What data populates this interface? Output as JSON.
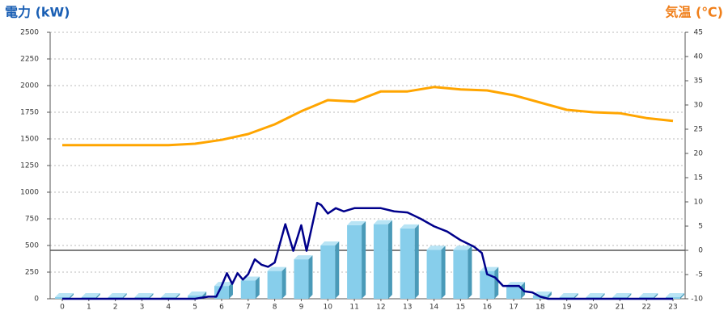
{
  "chart_data": {
    "type": "bar-line",
    "title": "電力 (kW)",
    "y2_title": "気温 (℃)",
    "categories": [
      "0",
      "1",
      "2",
      "3",
      "4",
      "5",
      "6",
      "7",
      "8",
      "9",
      "10",
      "11",
      "12",
      "13",
      "14",
      "15",
      "16",
      "17",
      "18",
      "19",
      "20",
      "21",
      "22",
      "23"
    ],
    "ylim": [
      0,
      2500
    ],
    "yticks": [
      0,
      250,
      500,
      750,
      1000,
      1250,
      1500,
      1750,
      2000,
      2250,
      2500
    ],
    "y2lim": [
      -10,
      45
    ],
    "y2ticks": [
      -10,
      -5,
      0,
      5,
      10,
      15,
      20,
      25,
      30,
      35,
      40,
      45
    ],
    "grid": true,
    "bars": {
      "color": "#87ceeb",
      "values": [
        15,
        15,
        15,
        15,
        15,
        30,
        120,
        170,
        260,
        370,
        500,
        690,
        700,
        660,
        460,
        460,
        260,
        120,
        30,
        15,
        15,
        15,
        15,
        15
      ]
    },
    "series": [
      {
        "color": "#00008b",
        "x": [
          0,
          5,
          5.5,
          5.8,
          6,
          6.2,
          6.4,
          6.6,
          6.8,
          7,
          7.25,
          7.5,
          7.75,
          8,
          8.4,
          8.7,
          9,
          9.2,
          9.6,
          9.75,
          10,
          10.3,
          10.6,
          11,
          12,
          12.5,
          13,
          13.5,
          14,
          14.5,
          15,
          15.5,
          15.8,
          16,
          16.3,
          16.6,
          17.2,
          17.4,
          17.7,
          18,
          18.3,
          23
        ],
        "values": [
          0,
          0,
          20,
          20,
          120,
          240,
          140,
          240,
          180,
          230,
          370,
          320,
          300,
          340,
          700,
          450,
          690,
          450,
          900,
          880,
          800,
          850,
          820,
          850,
          850,
          820,
          810,
          750,
          680,
          630,
          550,
          490,
          430,
          230,
          200,
          120,
          120,
          70,
          60,
          20,
          0,
          0
        ]
      },
      {
        "color": "#ffa500",
        "axis": "y2",
        "values": [
          21.7,
          21.7,
          21.7,
          21.7,
          21.7,
          22,
          22.8,
          24,
          26,
          28.7,
          31,
          30.7,
          32.8,
          32.8,
          33.7,
          33.2,
          33,
          32,
          30.5,
          29,
          28.5,
          28.3,
          27.3,
          26.7
        ]
      }
    ]
  }
}
